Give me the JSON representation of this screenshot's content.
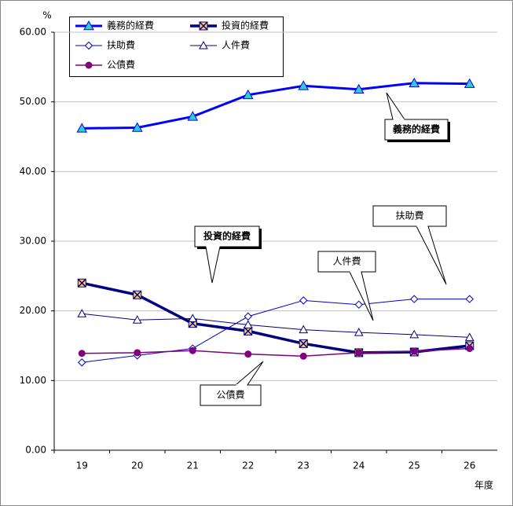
{
  "chart_data": {
    "type": "line",
    "y_unit": "%",
    "x_label": "年度",
    "categories": [
      "19",
      "20",
      "21",
      "22",
      "23",
      "24",
      "25",
      "26"
    ],
    "ylim": [
      0,
      60
    ],
    "yticks": [
      {
        "value": 0,
        "label": "0.00"
      },
      {
        "value": 10,
        "label": "10.00"
      },
      {
        "value": 20,
        "label": "20.00"
      },
      {
        "value": 30,
        "label": "30.00"
      },
      {
        "value": 40,
        "label": "40.00"
      },
      {
        "value": 50,
        "label": "50.00"
      },
      {
        "value": 60,
        "label": "60.00"
      }
    ],
    "grid": true,
    "series": [
      {
        "name": "義務的経費",
        "color": "#0000ff",
        "marker": "filled-triangle",
        "marker_color": "#33cccc",
        "width": 3,
        "values": [
          46.2,
          46.3,
          47.9,
          51.0,
          52.3,
          51.8,
          52.7,
          52.6
        ]
      },
      {
        "name": "投資的経費",
        "color": "#000080",
        "marker": "cross-square",
        "marker_color": "#ffcc66",
        "width": 3.5,
        "values": [
          24.0,
          22.3,
          18.2,
          17.1,
          15.3,
          14.0,
          14.1,
          15.0
        ]
      },
      {
        "name": "扶助費",
        "color": "#0000cc",
        "marker": "open-diamond",
        "marker_color": "#ffffff",
        "width": 1,
        "values": [
          12.6,
          13.6,
          14.6,
          19.2,
          21.5,
          20.9,
          21.7,
          21.7
        ]
      },
      {
        "name": "人件費",
        "color": "#000080",
        "marker": "open-triangle",
        "marker_color": "#ffffff",
        "width": 1,
        "values": [
          19.6,
          18.7,
          18.9,
          18.0,
          17.3,
          16.9,
          16.6,
          16.2
        ]
      },
      {
        "name": "公債費",
        "color": "#800080",
        "marker": "circle",
        "marker_color": "#800080",
        "width": 1.5,
        "values": [
          13.9,
          14.0,
          14.3,
          13.8,
          13.5,
          14.0,
          14.2,
          14.6
        ]
      }
    ],
    "annotations": [
      "義務的経費",
      "投資的経費",
      "扶助費",
      "人件費",
      "公債費"
    ]
  }
}
